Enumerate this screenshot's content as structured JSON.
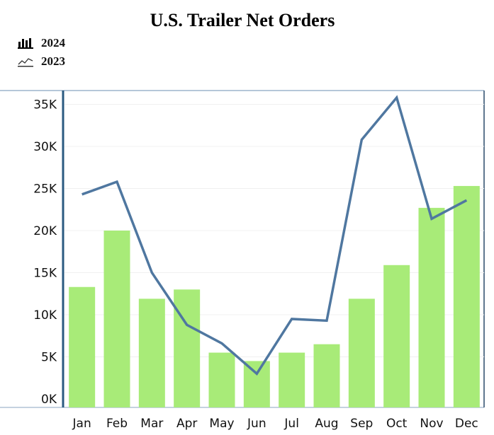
{
  "chart_data": {
    "type": "bar",
    "title": "U.S. Trailer Net Orders",
    "categories": [
      "Jan",
      "Feb",
      "Mar",
      "Apr",
      "May",
      "Jun",
      "Jul",
      "Aug",
      "Sep",
      "Oct",
      "Nov",
      "Dec"
    ],
    "series": [
      {
        "name": "2024",
        "type": "bar",
        "color": "#a8eb78",
        "values": [
          13300,
          20000,
          11900,
          13000,
          5500,
          4500,
          5500,
          6500,
          11900,
          15900,
          22700,
          25300
        ]
      },
      {
        "name": "2023",
        "type": "line",
        "color": "#4f77a0",
        "values": [
          24300,
          25800,
          15000,
          8800,
          6600,
          3000,
          9500,
          9300,
          30800,
          35800,
          21400,
          23600
        ]
      }
    ],
    "y_ticks": [
      "0K",
      "5K",
      "10K",
      "15K",
      "20K",
      "25K",
      "30K",
      "35K"
    ],
    "ylim": [
      0,
      37000
    ],
    "grid": true,
    "legend_position": "top-left",
    "legend_icons": [
      "bar-chart-icon",
      "line-chart-icon"
    ]
  }
}
